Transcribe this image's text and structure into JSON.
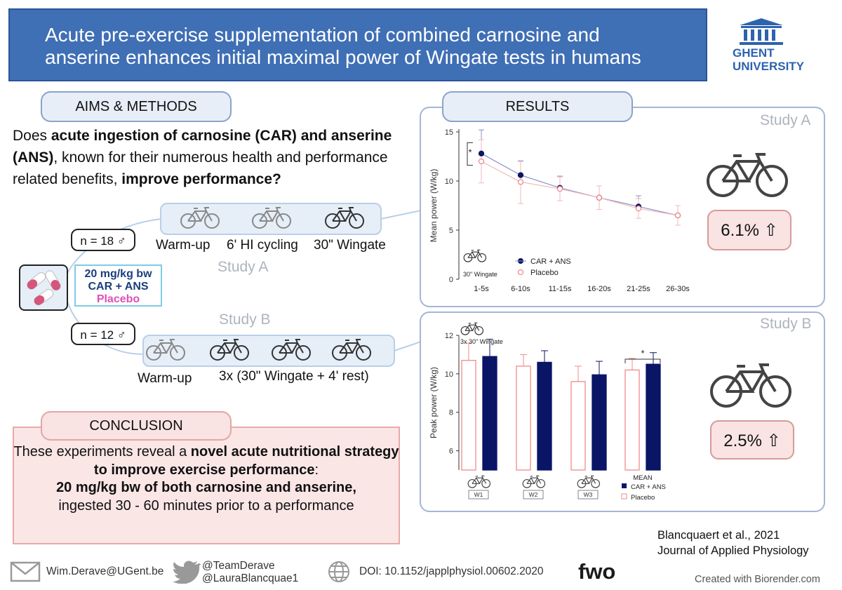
{
  "title": "Acute pre-exercise supplementation of combined carnosine and anserine enhances initial maximal power of Wingate tests in humans",
  "university": {
    "line1": "GHENT",
    "line2": "UNIVERSITY"
  },
  "aims": {
    "heading": "AIMS & METHODS",
    "question_parts": [
      "Does ",
      "acute ingestion of carnosine (CAR) and anserine (ANS)",
      ", known for their numerous health and performance related benefits, ",
      "improve performance?"
    ]
  },
  "study_a": {
    "label": "Study A",
    "n": "n = 18 ♂",
    "steps": [
      "Warm-up",
      "6' HI cycling",
      "30\" Wingate"
    ]
  },
  "study_b": {
    "label": "Study B",
    "n": "n = 12 ♂",
    "steps": [
      "Warm-up",
      "3x (30\" Wingate + 4' rest)"
    ]
  },
  "dose": {
    "line1": "20 mg/kg bw",
    "line2": "CAR + ANS",
    "line3": "Placebo"
  },
  "results": {
    "heading": "RESULTS",
    "study_a_label": "Study A",
    "study_b_label": "Study B",
    "study_a_result": "6.1% ⇧",
    "study_b_result": "2.5% ⇧"
  },
  "conclusion": {
    "heading": "CONCLUSION",
    "text_parts": [
      "These experiments reveal a ",
      "novel acute nutritional strategy to improve exercise performance",
      ":",
      "20 mg/kg bw of both carnosine and anserine,",
      "ingested 30 - 60 minutes prior to a performance"
    ]
  },
  "footer": {
    "email": "Wim.Derave@UGent.be",
    "twitter1": "@TeamDerave",
    "twitter2": "@LauraBlancquae1",
    "doi": "DOI: 10.1152/japplphysiol.00602.2020",
    "fwo": "fwo",
    "biorender": "Created with Biorender.com"
  },
  "citation": {
    "line1": "Blancquaert et al., 2021",
    "line2": "Journal of Applied Physiology"
  },
  "colors": {
    "car_ans": "#0b1566",
    "placebo": "#f08a8a",
    "banner": "#3f6fb5"
  },
  "chart_data": [
    {
      "type": "line",
      "ylabel": "Mean power (W/kg)",
      "inset_label": "30\" Wingate",
      "significance": "*",
      "categories": [
        "1-5s",
        "6-10s",
        "11-15s",
        "16-20s",
        "21-25s",
        "26-30s"
      ],
      "ylim": [
        0,
        15
      ],
      "yticks": [
        0,
        5,
        10,
        15
      ],
      "series": [
        {
          "name": "CAR + ANS",
          "values": [
            12.8,
            10.6,
            9.3,
            8.3,
            7.4,
            6.5
          ],
          "errors": [
            2.4,
            1.4,
            1.2,
            1.2,
            1.1,
            1.0
          ]
        },
        {
          "name": "Placebo",
          "values": [
            12.0,
            9.9,
            9.2,
            8.3,
            7.2,
            6.5
          ],
          "errors": [
            2.2,
            2.2,
            1.2,
            1.2,
            1.0,
            1.0
          ]
        }
      ]
    },
    {
      "type": "bar",
      "ylabel": "Peak power (W/kg)",
      "inset_label": "3x 30\" Wingate",
      "significance": "*",
      "categories": [
        "W1",
        "W2",
        "W3",
        "MEAN"
      ],
      "ylim": [
        5,
        12
      ],
      "yticks": [
        6,
        8,
        10,
        12
      ],
      "series": [
        {
          "name": "Placebo",
          "values": [
            10.7,
            10.4,
            9.6,
            10.2
          ],
          "errors": [
            0.9,
            0.6,
            0.8,
            0.6
          ]
        },
        {
          "name": "CAR + ANS",
          "values": [
            10.9,
            10.6,
            9.95,
            10.5
          ],
          "errors": [
            0.9,
            0.6,
            0.7,
            0.6
          ]
        }
      ]
    }
  ]
}
